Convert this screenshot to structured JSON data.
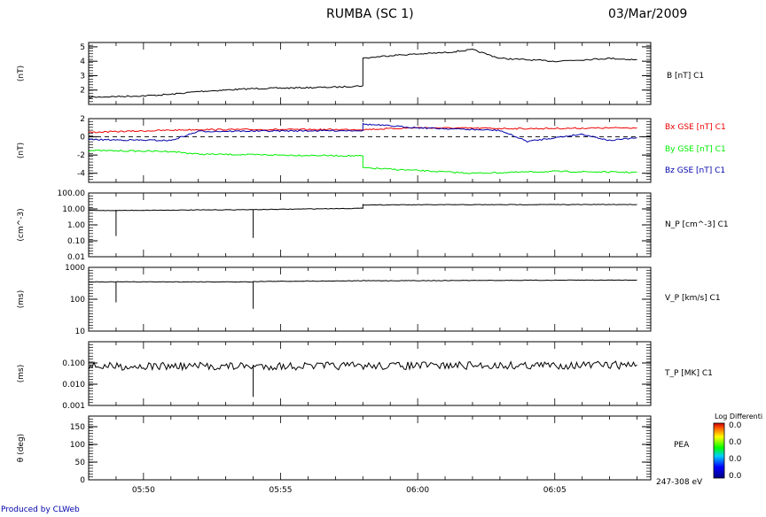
{
  "title": "RUMBA (SC 1)",
  "date": "03/Mar/2009",
  "credit": "Produced by CLWeb",
  "x_ticks": [
    "05:50",
    "05:55",
    "06:00",
    "06:05"
  ],
  "colors": {
    "black": "#000000",
    "red": "#ee0000",
    "green": "#00ee00",
    "blue": "#0000aa"
  },
  "colorbar": {
    "title": "Log Differenti",
    "labels": [
      "0.0",
      "0.0",
      "0.0",
      "0.0"
    ],
    "energy": "247-308 eV"
  },
  "chart_data": [
    {
      "type": "line",
      "ylabel": "(nT)",
      "ylim": [
        1,
        5.3
      ],
      "scale": "linear",
      "yticks": [
        "5",
        "4",
        "3",
        "2"
      ],
      "series": [
        {
          "name": "B [nT] C1",
          "color": "#000000",
          "x": [
            "05:48",
            "05:50",
            "05:51",
            "05:52",
            "05:54",
            "05:57",
            "05:58",
            "05:58",
            "05:59",
            "06:00",
            "06:01",
            "06:02",
            "06:03",
            "06:05",
            "06:06",
            "06:07",
            "06:08"
          ],
          "values": [
            1.5,
            1.6,
            1.7,
            1.9,
            2.1,
            2.2,
            2.3,
            4.2,
            4.4,
            4.5,
            4.6,
            4.8,
            4.2,
            4.0,
            4.1,
            4.2,
            4.1
          ]
        }
      ]
    },
    {
      "type": "line",
      "ylabel": "(nT)",
      "ylim": [
        -5,
        2
      ],
      "scale": "linear",
      "yticks": [
        "2",
        "0",
        "-2",
        "-4"
      ],
      "zero_line": true,
      "series": [
        {
          "name": "Bx GSE [nT] C1",
          "color": "#ee0000",
          "x": [
            "05:48",
            "05:52",
            "05:58",
            "06:00",
            "06:04",
            "06:08"
          ],
          "values": [
            0.5,
            0.8,
            0.8,
            1.0,
            0.9,
            1.0
          ]
        },
        {
          "name": "By GSE [nT] C1",
          "color": "#00ee00",
          "x": [
            "05:48",
            "05:51",
            "05:52",
            "05:58",
            "05:58",
            "06:00",
            "06:02",
            "06:05",
            "06:08"
          ],
          "values": [
            -1.5,
            -1.6,
            -1.9,
            -2.1,
            -3.4,
            -3.7,
            -4.0,
            -3.8,
            -3.9
          ]
        },
        {
          "name": "Bz GSE [nT] C1",
          "color": "#0000aa",
          "x": [
            "05:48",
            "05:51",
            "05:52",
            "05:58",
            "05:58",
            "06:00",
            "06:03",
            "06:04",
            "06:06",
            "06:07",
            "06:08"
          ],
          "values": [
            -0.3,
            -0.4,
            0.6,
            0.7,
            1.4,
            1.0,
            0.7,
            -0.5,
            0.3,
            -0.4,
            -0.1
          ]
        }
      ]
    },
    {
      "type": "line",
      "ylabel": "(cm^-3)",
      "ylim": [
        0.01,
        100
      ],
      "scale": "log",
      "yticks": [
        "100.00",
        "10.00",
        "1.00",
        "0.10",
        "0.01"
      ],
      "series": [
        {
          "name": "N_P [cm^-3] C1",
          "color": "#000000",
          "x": [
            "05:48",
            "05:49",
            "05:49",
            "05:49",
            "05:54",
            "05:54",
            "05:54",
            "05:58",
            "05:58",
            "06:08"
          ],
          "values": [
            8,
            8,
            0.2,
            8,
            9,
            0.15,
            9,
            11,
            18,
            19
          ]
        }
      ]
    },
    {
      "type": "line",
      "ylabel": "(ms)",
      "ylim": [
        10,
        1000
      ],
      "scale": "log",
      "yticks": [
        "1000",
        "100",
        "10"
      ],
      "series": [
        {
          "name": "V_P [km/s] C1",
          "color": "#000000",
          "x": [
            "05:48",
            "05:49",
            "05:49",
            "05:49",
            "05:54",
            "05:54",
            "05:54",
            "05:58",
            "06:08"
          ],
          "values": [
            350,
            350,
            80,
            350,
            350,
            50,
            360,
            380,
            400
          ]
        }
      ]
    },
    {
      "type": "line",
      "ylabel": "(ms)",
      "ylim": [
        0.001,
        1
      ],
      "scale": "log",
      "yticks": [
        "0.100",
        "0.010",
        "0.001"
      ],
      "series": [
        {
          "name": "T_P [MK] C1",
          "color": "#000000",
          "x": [
            "05:48",
            "05:54",
            "05:54",
            "05:54",
            "06:08"
          ],
          "values": [
            0.07,
            0.07,
            0.0025,
            0.07,
            0.08
          ]
        }
      ]
    },
    {
      "type": "heatmap",
      "ylabel": "θ (deg)",
      "ylim": [
        0,
        180
      ],
      "scale": "linear",
      "yticks": [
        "150",
        "100",
        "50",
        "0"
      ],
      "series": [
        {
          "name": "PEA",
          "color": "#000000",
          "x": [],
          "values": []
        }
      ]
    }
  ]
}
